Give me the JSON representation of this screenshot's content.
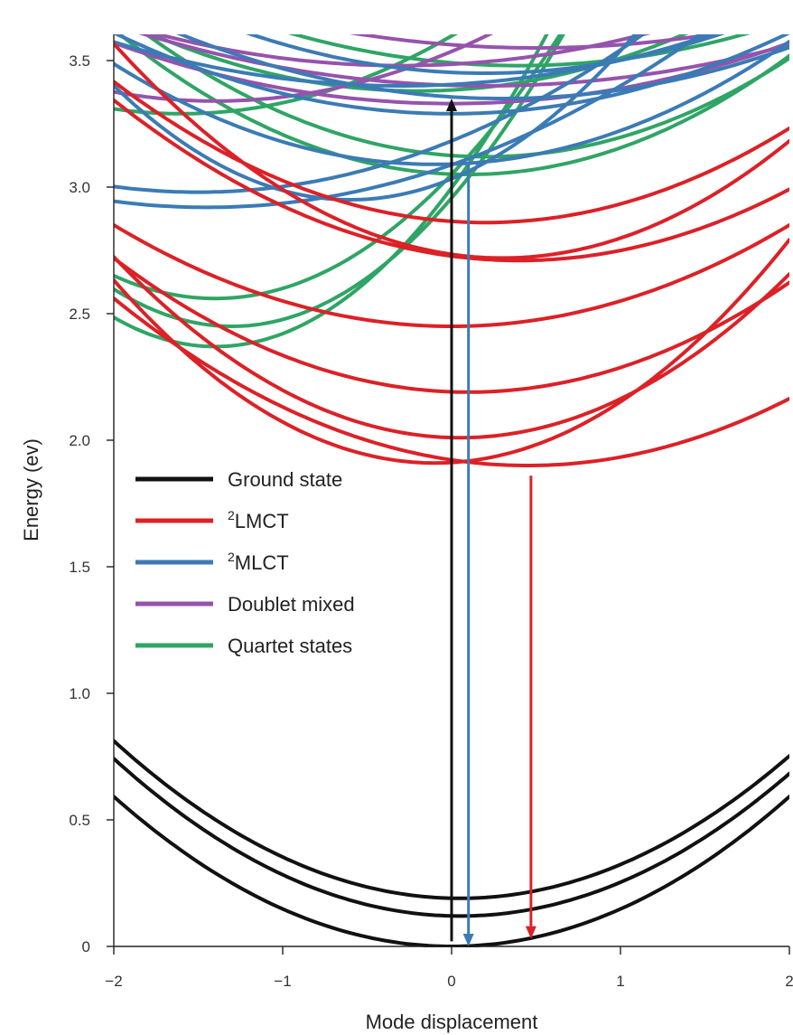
{
  "chart_data": {
    "type": "line",
    "xlabel": "Mode displacement",
    "ylabel": "Energy (ev)",
    "xlim": [
      -2,
      2
    ],
    "ylim": [
      0,
      3.6
    ],
    "x_ticks": [
      -2,
      -1,
      0,
      1,
      2
    ],
    "x_tick_labels": [
      "−2",
      "−1",
      "0",
      "1",
      "2"
    ],
    "y_ticks": [
      0,
      0.5,
      1.0,
      1.5,
      2.0,
      2.5,
      3.0,
      3.5
    ],
    "y_tick_labels": [
      "0",
      "0.5",
      "1.0",
      "1.5",
      "2.0",
      "2.5",
      "3.0",
      "3.5"
    ],
    "grid": false,
    "legend_position": "center-left",
    "legend": [
      {
        "label": "Ground state",
        "sup": "",
        "color": "#111111"
      },
      {
        "label": "LMCT",
        "sup": "2",
        "color": "#dc2127"
      },
      {
        "label": "MLCT",
        "sup": "2",
        "color": "#3b7bb5"
      },
      {
        "label": "Doublet mixed",
        "sup": "",
        "color": "#9653ac"
      },
      {
        "label": "Quartet states",
        "sup": "",
        "color": "#2fa565"
      }
    ],
    "colors": {
      "Ground state": "#111111",
      "LMCT": "#dc2127",
      "MLCT": "#3b7bb5",
      "Doublet mixed": "#9653ac",
      "Quartet states": "#2fa565"
    },
    "series": [
      {
        "group": "Ground state",
        "x0": 0.0,
        "e0": 0.0,
        "k": 0.148
      },
      {
        "group": "Ground state",
        "x0": 0.05,
        "e0": 0.12,
        "k": 0.148
      },
      {
        "group": "Ground state",
        "x0": 0.05,
        "e0": 0.19,
        "k": 0.148
      },
      {
        "group": "LMCT",
        "x0": 0.45,
        "e0": 1.9,
        "k": 0.11
      },
      {
        "group": "LMCT",
        "x0": 0.05,
        "e0": 2.01,
        "k": 0.17
      },
      {
        "group": "LMCT",
        "x0": 0.1,
        "e0": 2.19,
        "k": 0.12
      },
      {
        "group": "LMCT",
        "x0": 0.0,
        "e0": 2.45,
        "k": 0.1
      },
      {
        "group": "LMCT",
        "x0": 0.4,
        "e0": 2.71,
        "k": 0.11
      },
      {
        "group": "LMCT",
        "x0": 0.2,
        "e0": 2.86,
        "k": 0.115
      },
      {
        "group": "LMCT",
        "x0": -0.1,
        "e0": 1.91,
        "k": 0.2
      },
      {
        "group": "LMCT",
        "x0": 0.3,
        "e0": 2.72,
        "k": 0.16
      },
      {
        "group": "MLCT",
        "x0": -1.45,
        "e0": 2.92,
        "k": 0.08
      },
      {
        "group": "MLCT",
        "x0": -1.5,
        "e0": 2.98,
        "k": 0.09
      },
      {
        "group": "MLCT",
        "x0": -0.1,
        "e0": 3.09,
        "k": 0.11
      },
      {
        "group": "MLCT",
        "x0": 0.0,
        "e0": 3.29,
        "k": 0.08
      },
      {
        "group": "MLCT",
        "x0": 0.3,
        "e0": 3.35,
        "k": 0.07
      },
      {
        "group": "MLCT",
        "x0": 0.2,
        "e0": 3.45,
        "k": 0.08
      },
      {
        "group": "MLCT",
        "x0": -0.6,
        "e0": 2.95,
        "k": 0.23
      },
      {
        "group": "MLCT",
        "x0": -0.3,
        "e0": 3.4,
        "k": 0.06
      },
      {
        "group": "Doublet mixed",
        "x0": -1.4,
        "e0": 3.34,
        "k": 0.1
      },
      {
        "group": "Doublet mixed",
        "x0": 0.0,
        "e0": 3.33,
        "k": 0.06
      },
      {
        "group": "Doublet mixed",
        "x0": 0.2,
        "e0": 3.4,
        "k": 0.05
      },
      {
        "group": "Doublet mixed",
        "x0": -0.3,
        "e0": 3.48,
        "k": 0.06
      },
      {
        "group": "Doublet mixed",
        "x0": 0.5,
        "e0": 3.55,
        "k": 0.05
      },
      {
        "group": "Quartet states",
        "x0": -1.4,
        "e0": 2.37,
        "k": 0.32
      },
      {
        "group": "Quartet states",
        "x0": -1.3,
        "e0": 2.45,
        "k": 0.3
      },
      {
        "group": "Quartet states",
        "x0": -1.4,
        "e0": 2.56,
        "k": 0.25
      },
      {
        "group": "Quartet states",
        "x0": -1.6,
        "e0": 3.29,
        "k": 0.12
      },
      {
        "group": "Quartet states",
        "x0": 0.1,
        "e0": 3.05,
        "k": 0.13
      },
      {
        "group": "Quartet states",
        "x0": 0.2,
        "e0": 3.12,
        "k": 0.12
      },
      {
        "group": "Quartet states",
        "x0": -0.2,
        "e0": 3.38,
        "k": 0.09
      },
      {
        "group": "Quartet states",
        "x0": 0.4,
        "e0": 3.48,
        "k": 0.07
      }
    ],
    "arrows": [
      {
        "label": "excitation",
        "x": 0.0,
        "y_from": 0.02,
        "y_to": 3.35,
        "color": "#111111"
      },
      {
        "label": "MLCT decay",
        "x": 0.1,
        "y_from": 3.09,
        "y_to": 0.0,
        "color": "#3b7bb5"
      },
      {
        "label": "LMCT decay",
        "x": 0.47,
        "y_from": 1.86,
        "y_to": 0.03,
        "color": "#dc2127"
      }
    ]
  }
}
